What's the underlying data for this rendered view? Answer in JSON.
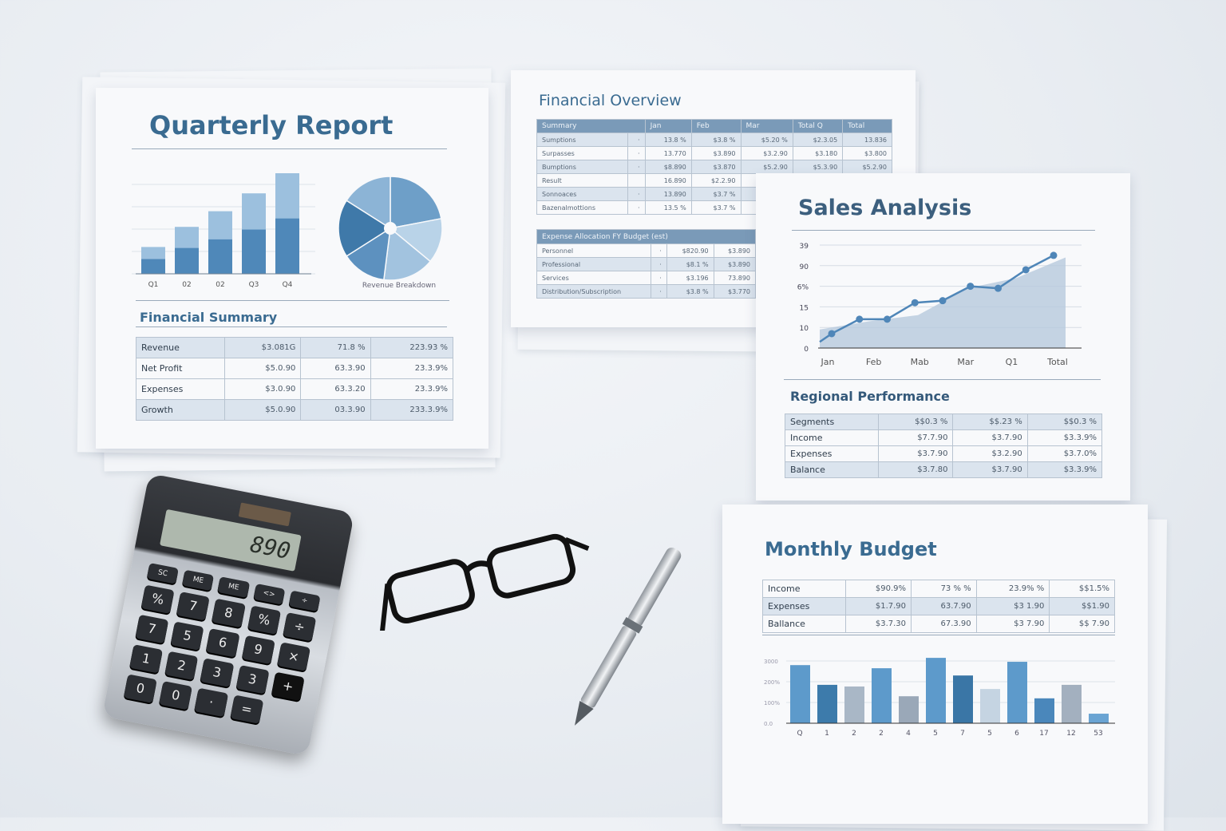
{
  "quarterly_report": {
    "title": "Quarterly Report",
    "bar_labels": [
      "Q1",
      "02",
      "02",
      "Q3",
      "Q4"
    ],
    "bar_values": [
      1.2,
      2.1,
      2.8,
      3.6,
      4.5
    ],
    "pie_slices": [
      22,
      14,
      16,
      14,
      18,
      16
    ],
    "pie_label": "Revenue Breakdown",
    "summary_title": "Financial Summary",
    "summary_rows": [
      [
        "Revenue",
        "$3.081G",
        "71.8 %",
        "223.93 %"
      ],
      [
        "Net Profit",
        "$5.0.90",
        "63.3.90",
        "23.3.9%"
      ],
      [
        "Expenses",
        "$3.0.90",
        "63.3.20",
        "23.3.9%"
      ],
      [
        "Growth",
        "$5.0.90",
        "03.3.90",
        "233.3.9%"
      ]
    ]
  },
  "financial_overview": {
    "title": "Financial Overview",
    "table1_header": [
      "Summary",
      "Jan",
      "Feb",
      "Mar",
      "Total Q",
      "Total"
    ],
    "table1_rows": [
      [
        "Sumptions",
        "·",
        "13.8 %",
        "$3.8 %",
        "$5.20 %",
        "$2.3.05",
        "13.836"
      ],
      [
        "Surpasses",
        "·",
        "13.770",
        "$3.890",
        "$3.2.90",
        "$3.180",
        "$3.800"
      ],
      [
        "Bumptions",
        "·",
        "$8.890",
        "$3.870",
        "$5.2.90",
        "$5.3.90",
        "$5.2.90"
      ],
      [
        "Result",
        "",
        "16.890",
        "$2.2.90",
        "",
        "",
        ""
      ],
      [
        "Sonnoaces",
        "·",
        "13.890",
        "$3.7 %",
        "",
        "",
        ""
      ],
      [
        "Bazenalmottions",
        "·",
        "13.5 %",
        "$3.7 %",
        "",
        "",
        ""
      ]
    ],
    "table2_header": "Expense Allocation FY Budget (est)",
    "table2_rows": [
      [
        "Personnel",
        "·",
        "$820.90",
        "$3.890"
      ],
      [
        "Professional",
        "·",
        "$8.1 %",
        "$3.890"
      ],
      [
        "Services",
        "·",
        "$3.196",
        "73.890"
      ],
      [
        "Distribution/Subscription",
        "·",
        "$3.8 %",
        "$3.770"
      ]
    ]
  },
  "sales_analysis": {
    "title": "Sales Analysis",
    "chart_data": {
      "type": "area",
      "x": [
        "Jan",
        "Feb",
        "Mab",
        "Mar",
        "Q1",
        "Total"
      ],
      "y_ticks": [
        "0",
        "10",
        "15",
        "6%",
        "90",
        "39"
      ],
      "line_levels": [
        0.7,
        1.4,
        1.4,
        2.2,
        2.3,
        3.0,
        2.9,
        3.8,
        4.5
      ],
      "area_levels": [
        0.9,
        1.3,
        1.6,
        2.9,
        3.4,
        4.4
      ],
      "grid": true
    },
    "regional_title": "Regional Performance",
    "regional_rows": [
      [
        "Segments",
        "$$0.3 %",
        "$$.23 %",
        "$$0.3 %"
      ],
      [
        "Income",
        "$7.7.90",
        "$3.7.90",
        "$3.3.9%"
      ],
      [
        "Expenses",
        "$3.7.90",
        "$3.2.90",
        "$3.7.0%"
      ],
      [
        "Balance",
        "$3.7.80",
        "$3.7.90",
        "$3.3.9%"
      ]
    ]
  },
  "monthly_budget": {
    "title": "Monthly Budget",
    "rows": [
      [
        "Income",
        "$90.9%",
        "73 % %",
        "23.9% %",
        "$$1.5%"
      ],
      [
        "Expenses",
        "$1.7.90",
        "63.7.90",
        "$3 1.90",
        "$$1.90"
      ],
      [
        "Ballance",
        "$3.7.30",
        "67.3.90",
        "$3 7.90",
        "$$ 7.90"
      ]
    ],
    "chart_data": {
      "type": "bar",
      "categories": [
        "Q",
        "1",
        "2",
        "2",
        "4",
        "5",
        "7",
        "5",
        "6",
        "17",
        "12",
        "53"
      ],
      "values": [
        2.8,
        1.85,
        1.77,
        2.65,
        1.3,
        3.15,
        2.3,
        1.65,
        2.96,
        1.2,
        1.85,
        0.46
      ],
      "y_ticks": [
        "0.0",
        "100%",
        "200%",
        "3000"
      ],
      "colors": [
        "#5d9acb",
        "#3d7bab",
        "#a9b7c6",
        "#5d9acb",
        "#9aa8b8",
        "#5d9acb",
        "#3a76a6",
        "#c5d4e2",
        "#5d9acb",
        "#4a87bb",
        "#a3b0bf",
        "#6aa4d3"
      ]
    }
  },
  "calculator": {
    "display": "890",
    "keys": [
      "SC",
      "ME",
      "ME",
      "<>",
      "÷",
      "%",
      "7",
      "8",
      "%",
      "÷",
      "7",
      "5",
      "6",
      "9",
      "×",
      "1",
      "2",
      "3",
      "3",
      "+",
      "0",
      "0",
      "·",
      "="
    ]
  },
  "colors": {
    "accent": "#3a6b91",
    "table_header": "#7a9ab8"
  }
}
